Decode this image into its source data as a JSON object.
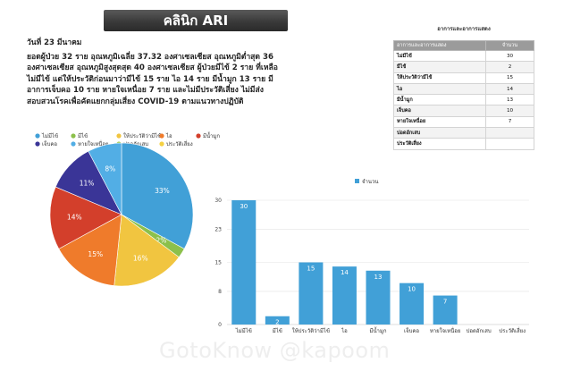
{
  "header": {
    "title": "คลินิก ARI",
    "date": "วันที่ 23 มีนาคม"
  },
  "summary_text": "ยอดผู้ป่วย 32 ราย อุณหภูมิเฉลี่ย 37.32 องศาเซลเซียส อุณหภูมิต่ำสุด 36 องศาเซลเซียส อุณหภูมิสูงสุดสุด 40 องศาเซลเซียส ผู้ป่วยมีไข้ 2 ราย ที่เหลือไม่มีไข้ แต่ให้ประวัติก่อนมาว่ามีไข้ 15 ราย ไอ 14 ราย มีน้ำมูก 13 ราย มีอาการเจ็บคอ 10 ราย หายใจเหนื่อย 7 ราย และไม่มีประวัติเสี่ยง ไม่มีส่งสอบสวนโรคเพื่อคัดแยกกลุ่มเสี่ยง COVID-19 ตามแนวทางปฏิบัติ",
  "symptom_table": {
    "caption": "อาการและอาการแสดง",
    "col_symptom": "อาการและอาการแสดง",
    "col_count": "จำนวน",
    "rows": [
      {
        "label": "ไม่มีไข้",
        "count": "30"
      },
      {
        "label": "มีไข้",
        "count": "2"
      },
      {
        "label": "ให้ประวัติว่ามีไข้",
        "count": "15"
      },
      {
        "label": "ไอ",
        "count": "14"
      },
      {
        "label": "มีน้ำมูก",
        "count": "13"
      },
      {
        "label": "เจ็บคอ",
        "count": "10"
      },
      {
        "label": "หายใจเหนื่อย",
        "count": "7"
      },
      {
        "label": "ปอดอักเสบ",
        "count": ""
      },
      {
        "label": "ประวัติเสี่ยง",
        "count": ""
      }
    ]
  },
  "chart_data": [
    {
      "type": "pie",
      "title": "",
      "legend_position": "top",
      "labels": [
        "ไม่มีไข้",
        "มีไข้",
        "ให้ประวัติว่ามีไข้",
        "ไอ",
        "มีน้ำมูก",
        "เจ็บคอ",
        "หายใจเหนื่อย",
        "ปอดอักเสบ",
        "ประวัติเสี่ยง"
      ],
      "values": [
        30,
        2,
        15,
        14,
        13,
        10,
        7,
        0,
        0
      ],
      "percent_labels": [
        "33%",
        "2%",
        "16%",
        "15%",
        "14%",
        "11%",
        "8%",
        "",
        ""
      ],
      "colors": [
        "#41a0d7",
        "#8cc04b",
        "#f1c540",
        "#ef7b2b",
        "#d33f2b",
        "#3a3597",
        "#52aee5",
        "#9fcb55",
        "#f5d142"
      ]
    },
    {
      "type": "bar",
      "title": "",
      "legend_position": "top",
      "series": [
        {
          "name": "จำนวน",
          "values": [
            30,
            2,
            15,
            14,
            13,
            10,
            7,
            0,
            0
          ]
        }
      ],
      "categories": [
        "ไม่มีไข้",
        "มีไข้",
        "ให้ประวัติว่ามีไข้",
        "ไอ",
        "มีน้ำมูก",
        "เจ็บคอ",
        "หายใจเหนื่อย",
        "ปอดอักเสบ",
        "ประวัติเสี่ยง"
      ],
      "value_labels": [
        "30",
        "2",
        "15",
        "14",
        "13",
        "10",
        "7",
        "",
        ""
      ],
      "yticks": [
        0,
        8,
        15,
        23,
        30
      ],
      "ylim": [
        0,
        30
      ],
      "grid": true,
      "color": "#41a0d7"
    }
  ],
  "watermark": "GotoKnow @kapoom"
}
